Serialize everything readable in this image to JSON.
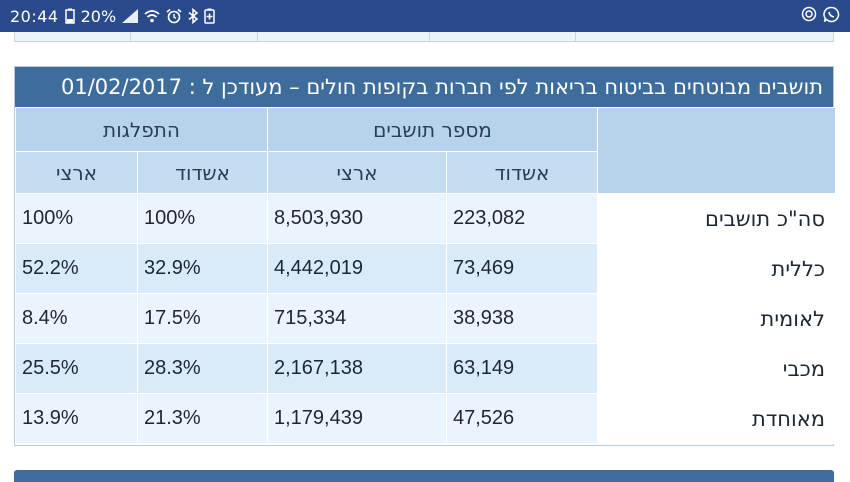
{
  "status_bar": {
    "time": "20:44",
    "battery": "20%",
    "icons_left": [
      "battery-icon",
      "signal-icon",
      "wifi-icon",
      "alarm-icon",
      "bluetooth-icon",
      "battery-saver-icon"
    ],
    "icons_right": [
      "nfc-icon",
      "whatsapp-icon"
    ]
  },
  "panel": {
    "title": "תושבים מבוטחים בביטוח בריאות לפי חברות בקופות חולים – מעודכן ל : 01/02/2017",
    "group_headers": {
      "residents": "מספר תושבים",
      "distribution": "התפלגות"
    },
    "sub_headers": {
      "ashdod_residents": "אשדוד",
      "national_residents": "ארצי",
      "ashdod_dist": "אשדוד",
      "national_dist": "ארצי"
    },
    "rows": [
      {
        "label": "סה\"כ תושבים",
        "ashdod": "223,082",
        "national": "8,503,930",
        "ashdod_pct": "100%",
        "national_pct": "100%"
      },
      {
        "label": "כללית",
        "ashdod": "73,469",
        "national": "4,442,019",
        "ashdod_pct": "32.9%",
        "national_pct": "52.2%"
      },
      {
        "label": "לאומית",
        "ashdod": "38,938",
        "national": "715,334",
        "ashdod_pct": "17.5%",
        "national_pct": "8.4%"
      },
      {
        "label": "מכבי",
        "ashdod": "63,149",
        "national": "2,167,138",
        "ashdod_pct": "28.3%",
        "national_pct": "25.5%"
      },
      {
        "label": "מאוחדת",
        "ashdod": "47,526",
        "national": "1,179,439",
        "ashdod_pct": "21.3%",
        "national_pct": "13.9%"
      }
    ]
  },
  "colors": {
    "status_bar": "#2a4a8c",
    "title_bar": "#3e6d9c",
    "header": "#b7d3ec",
    "row_odd": "#eaf4fc",
    "row_even": "#d9ebf9"
  }
}
